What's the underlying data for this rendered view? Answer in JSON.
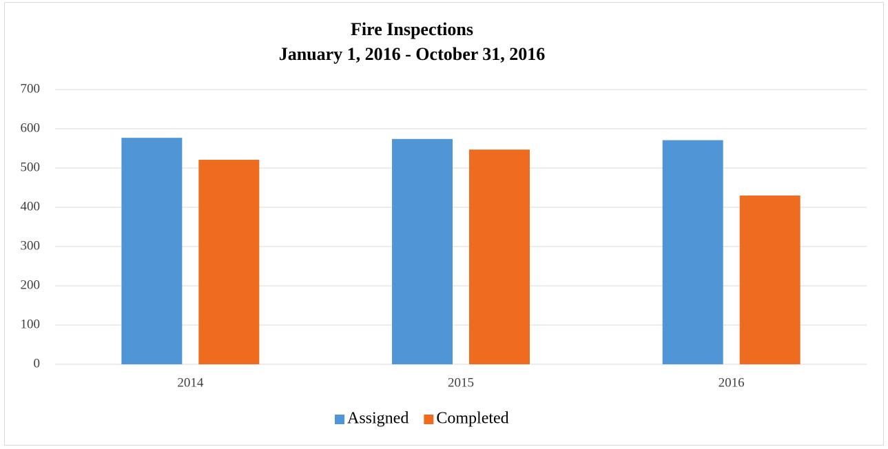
{
  "chart_data": {
    "type": "bar",
    "title": "Fire Inspections",
    "subtitle": "January 1, 2016 - October 31, 2016",
    "categories": [
      "2014",
      "2015",
      "2016"
    ],
    "series": [
      {
        "name": "Assigned",
        "color": "#5096d6",
        "values": [
          577,
          574,
          571
        ]
      },
      {
        "name": "Completed",
        "color": "#ed6c1f",
        "values": [
          521,
          547,
          430
        ]
      }
    ],
    "ylim": [
      0,
      700
    ],
    "yticks": [
      0,
      100,
      200,
      300,
      400,
      500,
      600,
      700
    ],
    "grid": true,
    "legend": "bottom"
  }
}
